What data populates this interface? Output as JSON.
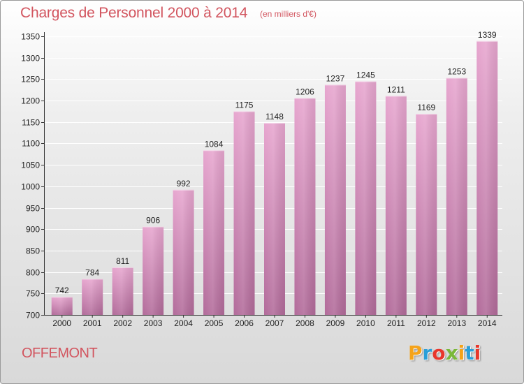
{
  "header": {
    "title": "Charges de Personnel 2000 à 2014",
    "subtitle": "(en milliers d'€)"
  },
  "footer": {
    "commune": "OFFEMONT",
    "logo": {
      "text": "Proxiti",
      "colors": [
        "#f5a31a",
        "#2a9fd8",
        "#e8372c",
        "#7ab838",
        "#f5a31a",
        "#2a9fd8",
        "#e8372c"
      ]
    }
  },
  "colors": {
    "title": "#d2555f",
    "bar_top": "#e7a6cf",
    "bar_bottom": "#b26b9a",
    "axis": "#333333",
    "grid": "#ffffff"
  },
  "chart_data": {
    "type": "bar",
    "categories": [
      "2000",
      "2001",
      "2002",
      "2003",
      "2004",
      "2005",
      "2006",
      "2007",
      "2008",
      "2009",
      "2010",
      "2011",
      "2012",
      "2013",
      "2014"
    ],
    "values": [
      742,
      784,
      811,
      906,
      992,
      1084,
      1175,
      1148,
      1206,
      1237,
      1245,
      1211,
      1169,
      1253,
      1339
    ],
    "ylim": [
      700,
      1350
    ],
    "yticks": [
      700,
      750,
      800,
      850,
      900,
      950,
      1000,
      1050,
      1100,
      1150,
      1200,
      1250,
      1300,
      1350
    ],
    "grid": true,
    "data_labels": true
  }
}
